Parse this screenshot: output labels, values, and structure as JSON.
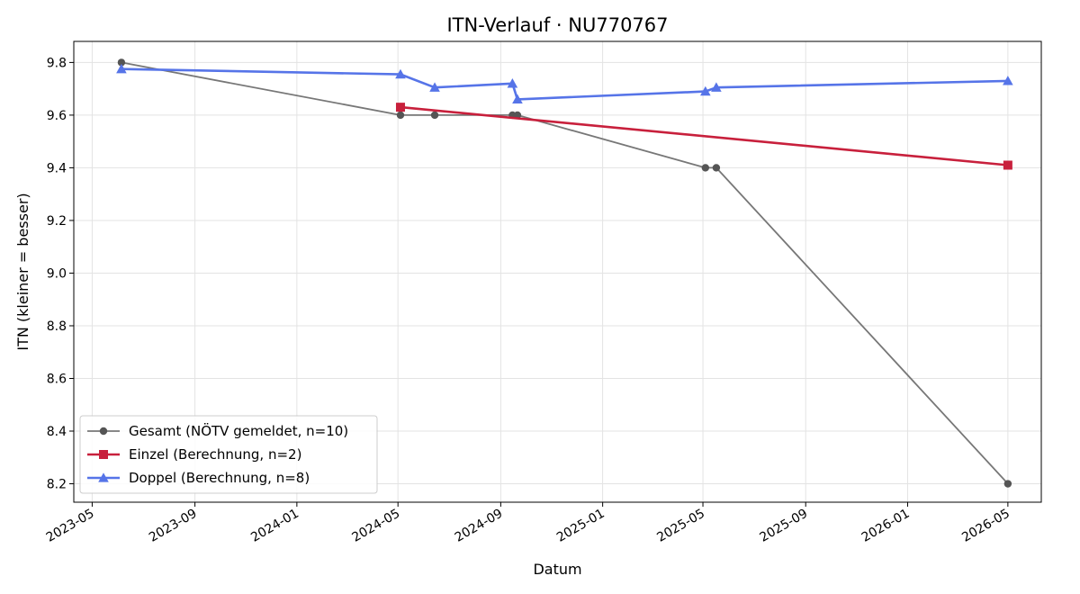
{
  "chart_data": {
    "type": "line",
    "title": "ITN-Verlauf · NU770767",
    "xlabel": "Datum",
    "ylabel": "ITN  (kleiner = besser)",
    "x_ticks": [
      "2023-05",
      "2023-09",
      "2024-01",
      "2024-05",
      "2024-09",
      "2025-01",
      "2025-05",
      "2025-09",
      "2026-01",
      "2026-05"
    ],
    "y_ticks": [
      "8.2",
      "8.4",
      "8.6",
      "8.8",
      "9.0",
      "9.2",
      "9.4",
      "9.6",
      "9.8"
    ],
    "xlim": [
      "2023-04-09",
      "2026-06-10"
    ],
    "ylim": [
      8.13,
      9.88
    ],
    "grid": true,
    "legend_position": "lower-left",
    "series": [
      {
        "name": "Gesamt (NÖTV gemeldet, n=10)",
        "color": "#777777",
        "marker": "circle",
        "points": [
          {
            "x": "2023-06-05",
            "y": 9.8
          },
          {
            "x": "2024-05-04",
            "y": 9.6
          },
          {
            "x": "2024-06-14",
            "y": 9.6
          },
          {
            "x": "2024-09-15",
            "y": 9.6
          },
          {
            "x": "2024-09-21",
            "y": 9.6
          },
          {
            "x": "2025-05-04",
            "y": 9.4
          },
          {
            "x": "2025-05-17",
            "y": 9.4
          },
          {
            "x": "2026-05-01",
            "y": 8.2
          }
        ]
      },
      {
        "name": "Einzel (Berechnung, n=2)",
        "color": "#c8203c",
        "marker": "square",
        "points": [
          {
            "x": "2024-05-04",
            "y": 9.63
          },
          {
            "x": "2026-05-01",
            "y": 9.41
          }
        ]
      },
      {
        "name": "Doppel (Berechnung, n=8)",
        "color": "#5674e8",
        "marker": "triangle",
        "points": [
          {
            "x": "2023-06-05",
            "y": 9.775
          },
          {
            "x": "2024-05-04",
            "y": 9.755
          },
          {
            "x": "2024-06-14",
            "y": 9.705
          },
          {
            "x": "2024-09-15",
            "y": 9.72
          },
          {
            "x": "2024-09-21",
            "y": 9.66
          },
          {
            "x": "2025-05-04",
            "y": 9.69
          },
          {
            "x": "2025-05-17",
            "y": 9.705
          },
          {
            "x": "2026-05-01",
            "y": 9.73
          }
        ]
      }
    ]
  }
}
